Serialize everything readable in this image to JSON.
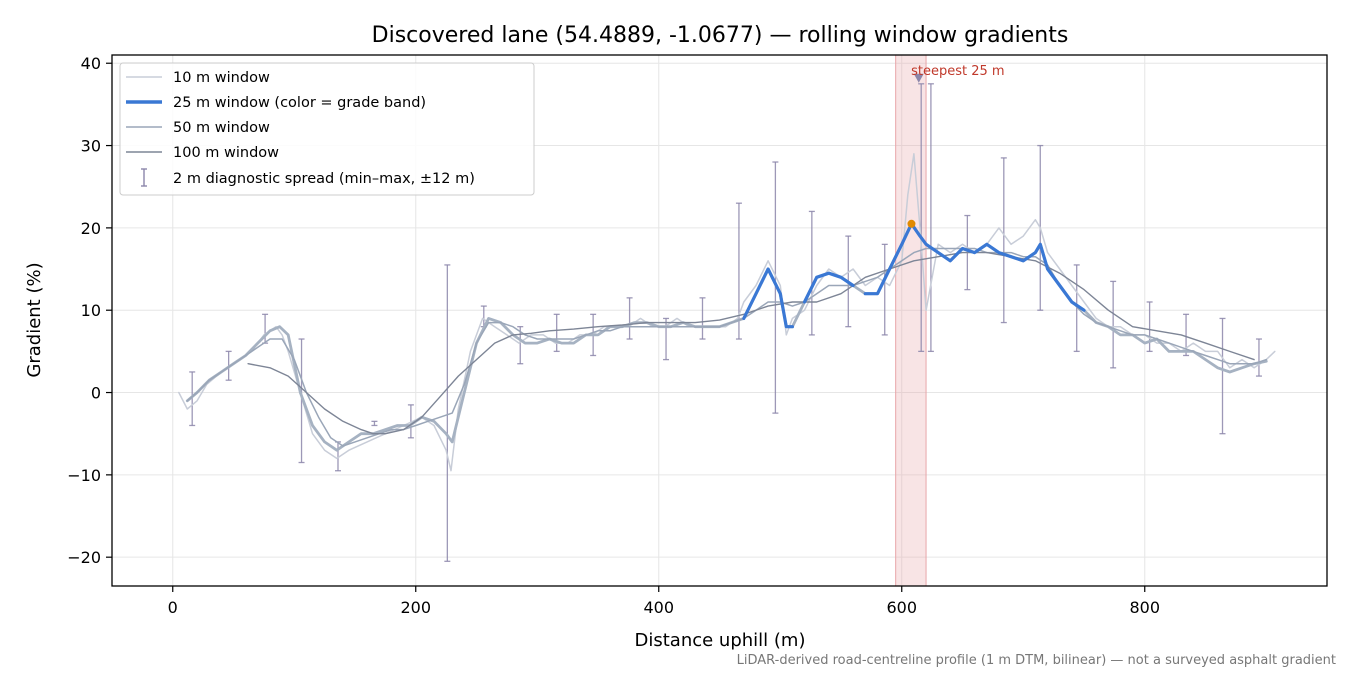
{
  "chart_data": {
    "type": "line",
    "title": "Discovered lane (54.4889, -1.0677) — rolling window gradients",
    "xlabel": "Distance uphill (m)",
    "ylabel": "Gradient (%)",
    "xlim": [
      -50,
      950
    ],
    "ylim": [
      -23.5,
      41
    ],
    "x_ticks": [
      0,
      200,
      400,
      600,
      800
    ],
    "y_ticks": [
      -20,
      -10,
      0,
      10,
      20,
      30,
      40
    ],
    "x_tick_labels": [
      "0",
      "200",
      "400",
      "600",
      "800"
    ],
    "y_tick_labels": [
      "−20",
      "−10",
      "0",
      "10",
      "20",
      "30",
      "40"
    ],
    "grid": true,
    "legend_position": "top-left",
    "colors": {
      "w10": "#c8cdd8",
      "w25_main": "#a6b2c2",
      "w25_band": "#3a78d4",
      "w50": "#9aa6b8",
      "w100": "#7d8596",
      "errorbar": "#8c86aa",
      "highlight": "#e8a5a8",
      "steepest_annot": "#c0392b",
      "peak_marker": "#e08a00"
    },
    "legend": [
      "10 m window",
      "25 m window (color = grade band)",
      "50 m window",
      "100 m window",
      "2 m diagnostic spread (min–max, ±12 m)"
    ],
    "series": [
      {
        "name": "10 m window",
        "x": [
          5,
          12,
          20,
          28,
          36,
          45,
          55,
          65,
          75,
          85,
          90,
          95,
          105,
          115,
          125,
          135,
          145,
          160,
          175,
          190,
          205,
          215,
          225,
          229,
          235,
          245,
          255,
          265,
          275,
          285,
          295,
          305,
          315,
          325,
          335,
          345,
          355,
          365,
          375,
          385,
          395,
          405,
          415,
          425,
          435,
          445,
          455,
          465,
          470,
          480,
          490,
          500,
          505,
          510,
          520,
          530,
          540,
          550,
          560,
          570,
          580,
          590,
          600,
          605,
          610,
          615,
          620,
          630,
          640,
          650,
          660,
          670,
          680,
          690,
          700,
          710,
          714,
          720,
          730,
          740,
          750,
          760,
          770,
          780,
          790,
          800,
          810,
          820,
          830,
          840,
          850,
          860,
          870,
          880,
          890,
          900,
          907
        ],
        "values": [
          0,
          -2,
          -1,
          1,
          2,
          3,
          4,
          5,
          7,
          8,
          7,
          5,
          0,
          -5,
          -7,
          -8,
          -7,
          -6,
          -5,
          -4,
          -3,
          -4,
          -7,
          -9.5,
          -2,
          5,
          9,
          8,
          7,
          6,
          7,
          7,
          6,
          6,
          7,
          7,
          8,
          8,
          8,
          9,
          8,
          8,
          9,
          8,
          8,
          8,
          8,
          9,
          11,
          13,
          16,
          13,
          7,
          9,
          10,
          13,
          15,
          14,
          15,
          13,
          14,
          13,
          16,
          24,
          29,
          20,
          10,
          18,
          17,
          18,
          17,
          18,
          20,
          18,
          19,
          21,
          20,
          17,
          15,
          13,
          11,
          9,
          8,
          8,
          7,
          7,
          6,
          6,
          5,
          6,
          5,
          5,
          3,
          4,
          3,
          4,
          5
        ]
      },
      {
        "name": "25 m window",
        "x": [
          12,
          20,
          30,
          40,
          50,
          60,
          70,
          80,
          88,
          95,
          105,
          115,
          125,
          135,
          145,
          155,
          165,
          175,
          185,
          195,
          205,
          215,
          225,
          230,
          240,
          250,
          260,
          270,
          280,
          290,
          300,
          310,
          320,
          330,
          340,
          350,
          360,
          370,
          380,
          390,
          400,
          410,
          420,
          430,
          440,
          450,
          460,
          470,
          480,
          490,
          500,
          505,
          510,
          520,
          530,
          540,
          550,
          560,
          570,
          580,
          590,
          600,
          608,
          615,
          620,
          630,
          640,
          650,
          660,
          670,
          680,
          690,
          700,
          710,
          714,
          720,
          730,
          740,
          750,
          760,
          770,
          780,
          790,
          800,
          810,
          820,
          830,
          840,
          850,
          860,
          870,
          880,
          890,
          900
        ],
        "values": [
          -1,
          0,
          1.5,
          2.5,
          3.5,
          4.5,
          6,
          7.5,
          8,
          7,
          0,
          -4,
          -6,
          -7,
          -6,
          -5,
          -5,
          -4.5,
          -4,
          -4,
          -3,
          -3.5,
          -5,
          -6,
          0,
          6,
          9,
          8.5,
          7,
          6,
          6,
          6.5,
          6,
          6,
          7,
          7,
          8,
          8,
          8.5,
          8.5,
          8,
          8,
          8.5,
          8,
          8,
          8,
          8.5,
          9,
          12,
          15,
          12,
          8,
          8,
          11,
          14,
          14.5,
          14,
          13,
          12,
          12,
          15,
          18,
          20.5,
          19,
          18,
          17,
          16,
          17.5,
          17,
          18,
          17,
          16.5,
          16,
          17,
          18,
          15,
          13,
          11,
          10,
          8.5,
          8,
          7,
          7,
          6,
          6.5,
          5,
          5,
          5,
          4,
          3,
          2.5,
          3,
          3.5,
          3.8
        ]
      },
      {
        "name": "50 m window",
        "x": [
          12,
          20,
          30,
          40,
          50,
          60,
          70,
          80,
          90,
          100,
          110,
          120,
          130,
          140,
          150,
          160,
          170,
          180,
          190,
          200,
          210,
          220,
          230,
          240,
          250,
          260,
          270,
          280,
          290,
          300,
          310,
          320,
          330,
          340,
          350,
          360,
          370,
          380,
          390,
          400,
          410,
          420,
          430,
          440,
          450,
          460,
          470,
          480,
          490,
          500,
          510,
          520,
          530,
          540,
          550,
          560,
          570,
          580,
          590,
          600,
          610,
          620,
          630,
          640,
          650,
          660,
          670,
          680,
          690,
          700,
          710,
          720,
          730,
          740,
          750,
          760,
          770,
          780,
          790,
          800,
          810,
          820,
          830,
          840,
          850,
          860,
          870,
          880,
          890,
          900
        ],
        "values": [
          -1,
          0,
          1.5,
          2.5,
          3.5,
          4.5,
          5.5,
          6.5,
          6.5,
          4,
          0,
          -3,
          -5.5,
          -6.5,
          -6,
          -5.5,
          -5,
          -4.5,
          -4.5,
          -4,
          -3.5,
          -3,
          -2.5,
          1,
          6,
          8.5,
          8.5,
          8,
          7,
          6.5,
          6.5,
          6.5,
          6.5,
          7,
          7.5,
          7.5,
          8,
          8,
          8,
          8,
          8,
          8,
          8,
          8,
          8,
          8.5,
          9,
          10,
          11,
          11,
          10.5,
          11,
          12,
          13,
          13,
          13,
          13.5,
          14,
          15,
          16,
          17,
          17.5,
          17.5,
          17.5,
          17.5,
          17.5,
          17,
          17,
          17,
          16.5,
          16.5,
          15.5,
          13,
          11,
          9.5,
          8.5,
          8,
          7.5,
          7,
          7,
          6.5,
          6,
          5.5,
          5,
          4.5,
          4,
          3.5,
          3.5,
          3.5,
          4
        ]
      },
      {
        "name": "100 m window",
        "x": [
          62,
          80,
          95,
          110,
          125,
          140,
          155,
          165,
          175,
          190,
          205,
          220,
          235,
          250,
          265,
          280,
          295,
          310,
          330,
          350,
          370,
          390,
          410,
          430,
          450,
          470,
          490,
          510,
          530,
          550,
          570,
          590,
          610,
          630,
          650,
          670,
          690,
          710,
          730,
          750,
          770,
          790,
          810,
          830,
          850,
          870,
          890
        ],
        "values": [
          3.5,
          3,
          2,
          0,
          -2,
          -3.5,
          -4.5,
          -5,
          -5,
          -4.5,
          -3,
          -0.5,
          2,
          4,
          6,
          7,
          7.2,
          7.5,
          7.7,
          8,
          8.2,
          8.5,
          8.5,
          8.5,
          8.8,
          9.5,
          10.5,
          11,
          11,
          12,
          14,
          15,
          16,
          16.5,
          17,
          17,
          16.5,
          16,
          14.5,
          12.5,
          10,
          8,
          7.5,
          7,
          6,
          5,
          4
        ]
      }
    ],
    "series_25m_grade_band": {
      "color": "#3a78d4",
      "segments": [
        {
          "x": [
            470,
            480,
            490,
            500,
            505,
            510
          ],
          "values": [
            9,
            12,
            15,
            12,
            8,
            8
          ]
        },
        {
          "x": [
            520,
            530,
            540,
            550,
            560
          ],
          "values": [
            11,
            14,
            14.5,
            14,
            13
          ]
        },
        {
          "x": [
            570,
            580,
            590,
            600,
            608,
            615,
            620,
            630,
            640,
            650,
            660,
            670,
            680,
            690,
            700,
            710,
            714,
            720,
            730,
            740,
            750
          ],
          "values": [
            12,
            12,
            15,
            18,
            20.5,
            19,
            18,
            17,
            16,
            17.5,
            17,
            18,
            17,
            16.5,
            16,
            17,
            18,
            15,
            13,
            11,
            10
          ]
        }
      ]
    },
    "errorbars": {
      "name": "2 m diagnostic spread (min–max, ±12 m)",
      "x": [
        16,
        46,
        76,
        106,
        136,
        166,
        196,
        226,
        256,
        286,
        316,
        346,
        376,
        406,
        436,
        466,
        496,
        526,
        556,
        586,
        616,
        624,
        654,
        684,
        714,
        744,
        774,
        804,
        834,
        864,
        894
      ],
      "low": [
        -4,
        1.5,
        6,
        -8.5,
        -9.5,
        -4,
        -5.5,
        -20.5,
        8,
        3.5,
        5,
        4.5,
        6.5,
        4,
        6.5,
        6.5,
        -2.5,
        7,
        8,
        7,
        5,
        5,
        12.5,
        8.5,
        10,
        5,
        3,
        5,
        4.5,
        -5,
        2
      ],
      "high": [
        2.5,
        5,
        9.5,
        6.5,
        -6,
        -3.5,
        -1.5,
        15.5,
        10.5,
        8,
        9.5,
        9.5,
        11.5,
        9,
        11.5,
        23,
        28,
        22,
        19,
        18,
        37.5,
        37.5,
        21.5,
        28.5,
        30,
        15.5,
        13.5,
        11,
        9.5,
        9,
        6.5
      ]
    },
    "highlight_band": {
      "x": [
        595,
        620
      ],
      "label": "steepest 25 m",
      "marker_x": 614,
      "marker_y": 38
    },
    "peak_point": {
      "x": 608,
      "y": 20.5
    }
  },
  "footnote": "LiDAR-derived road-centreline profile (1 m DTM, bilinear) — not a surveyed asphalt gradient"
}
